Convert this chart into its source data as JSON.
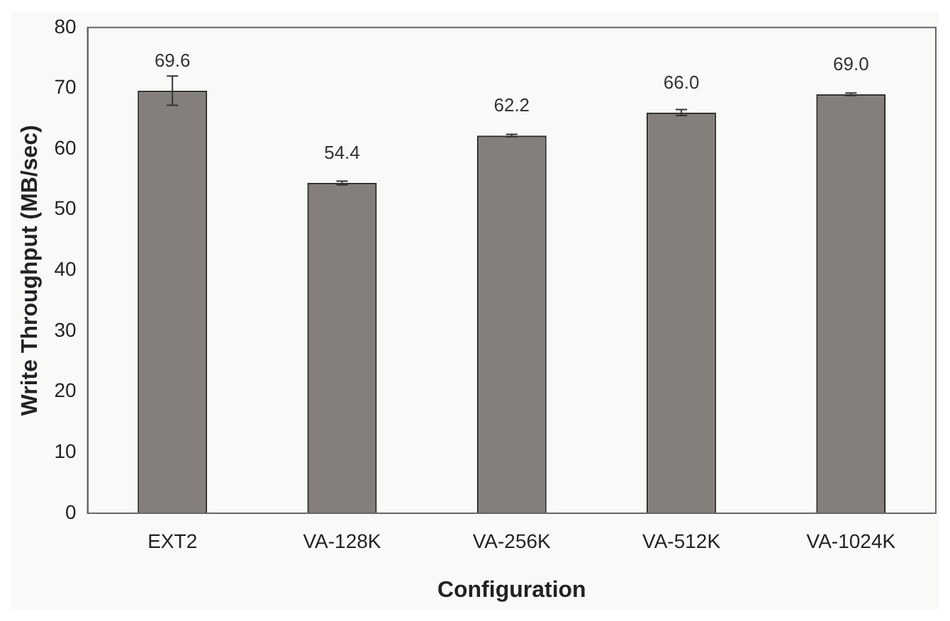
{
  "chart_data": {
    "type": "bar",
    "xlabel": "Configuration",
    "ylabel": "Write Throughput (MB/sec)",
    "categories": [
      "EXT2",
      "VA-128K",
      "VA-256K",
      "VA-512K",
      "VA-1024K"
    ],
    "values": [
      69.6,
      54.4,
      62.2,
      66.0,
      69.0
    ],
    "errors": [
      2.4,
      0.3,
      0.2,
      0.5,
      0.2
    ],
    "value_labels": [
      "69.6",
      "54.4",
      "62.2",
      "66.0",
      "69.0"
    ],
    "color": "#857f7b",
    "ylim": [
      0,
      80
    ],
    "yticks": [
      0,
      10,
      20,
      30,
      40,
      50,
      60,
      70,
      80
    ],
    "grid": false,
    "legend": false
  }
}
